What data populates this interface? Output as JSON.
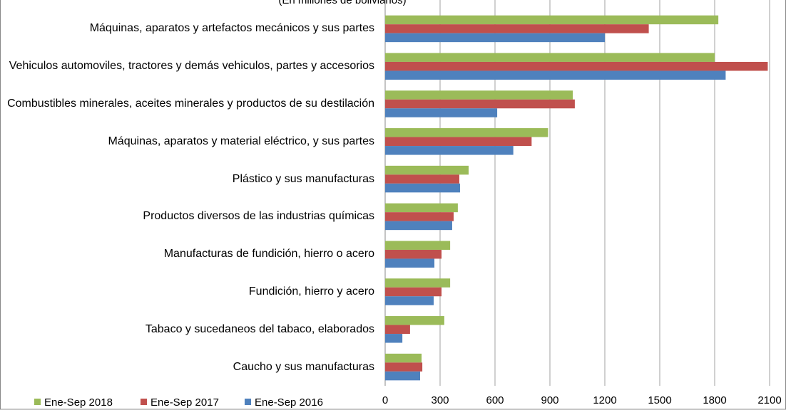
{
  "chart_data": {
    "type": "bar",
    "orientation": "horizontal",
    "subtitle": "(En millones de bolivianos)",
    "categories": [
      "Máquinas, aparatos y artefactos mecánicos y sus partes",
      "Vehiculos automoviles, tractores y demás vehiculos, partes y accesorios",
      "Combustibles minerales, aceites minerales y productos de su destilación",
      "Máquinas, aparatos y material eléctrico, y sus partes",
      "Plástico y sus manufacturas",
      "Productos diversos de las industrias químicas",
      "Manufacturas de fundición, hierro o acero",
      "Fundición, hierro y acero",
      "Tabaco y sucedaneos del tabaco, elaborados",
      "Caucho y sus manufacturas"
    ],
    "series": [
      {
        "name": "Ene-Sep 2018",
        "color": "#9bbb59",
        "values": [
          1820,
          1800,
          1025,
          890,
          456,
          397,
          355,
          355,
          323,
          199
        ]
      },
      {
        "name": "Ene-Sep 2017",
        "color": "#c0504d",
        "values": [
          1440,
          2090,
          1036,
          800,
          405,
          374,
          308,
          308,
          136,
          203
        ]
      },
      {
        "name": "Ene-Sep 2016",
        "color": "#4f81bd",
        "values": [
          1200,
          1860,
          612,
          700,
          409,
          366,
          269,
          265,
          94,
          191
        ]
      }
    ],
    "xlim": [
      0,
      2100
    ],
    "xticks": [
      0,
      300,
      600,
      900,
      1200,
      1500,
      1800,
      2100
    ],
    "grid": true,
    "legend": "bottom-left"
  }
}
